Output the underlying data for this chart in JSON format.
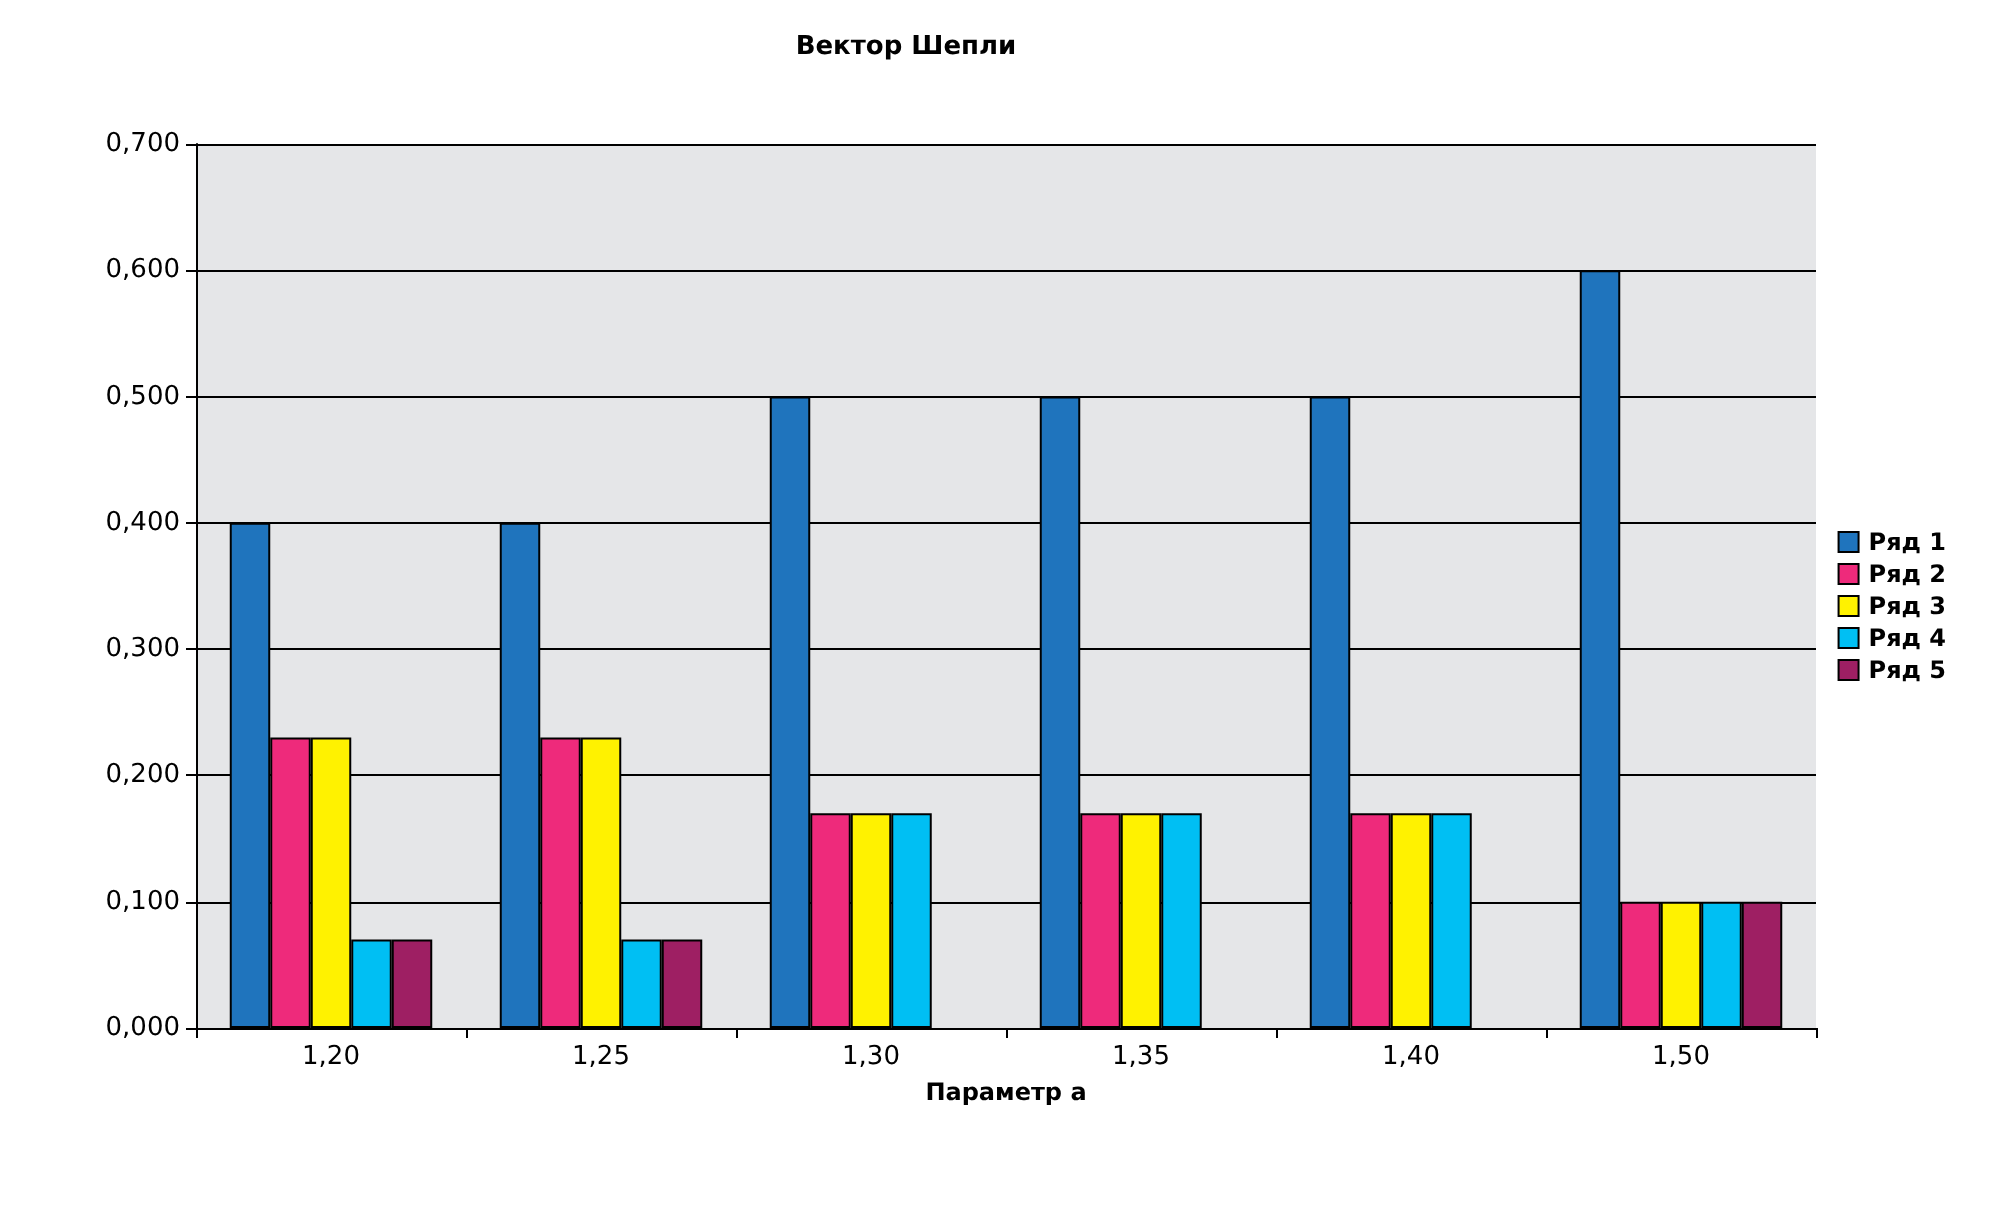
{
  "chart_data": {
    "type": "bar",
    "title": "Вектор Шепли",
    "xlabel": "Параметр a",
    "categories": [
      "1,20",
      "1,25",
      "1,30",
      "1,35",
      "1,40",
      "1,50"
    ],
    "series": [
      {
        "name": "Ряд 1",
        "color": "#1f74bd",
        "values": [
          0.4,
          0.4,
          0.5,
          0.5,
          0.5,
          0.6
        ]
      },
      {
        "name": "Ряд 2",
        "color": "#ee2a7b",
        "values": [
          0.23,
          0.23,
          0.17,
          0.17,
          0.17,
          0.1
        ]
      },
      {
        "name": "Ряд 3",
        "color": "#fff200",
        "values": [
          0.23,
          0.23,
          0.17,
          0.17,
          0.17,
          0.1
        ]
      },
      {
        "name": "Ряд 4",
        "color": "#00bff3",
        "values": [
          0.07,
          0.07,
          0.17,
          0.17,
          0.17,
          0.1
        ]
      },
      {
        "name": "Ряд 5",
        "color": "#9e1f63",
        "values": [
          0.07,
          0.07,
          null,
          null,
          null,
          0.1
        ]
      }
    ],
    "ylim": [
      0,
      0.7
    ],
    "yticks": [
      {
        "value": 0,
        "label": "0,000"
      },
      {
        "value": 0.1,
        "label": "0,100"
      },
      {
        "value": 0.2,
        "label": "0,200"
      },
      {
        "value": 0.3,
        "label": "0,300"
      },
      {
        "value": 0.4,
        "label": "0,400"
      },
      {
        "value": 0.5,
        "label": "0,500"
      },
      {
        "value": 0.6,
        "label": "0,600"
      },
      {
        "value": 0.7,
        "label": "0,700"
      }
    ],
    "grid": "y",
    "legend": "right"
  }
}
